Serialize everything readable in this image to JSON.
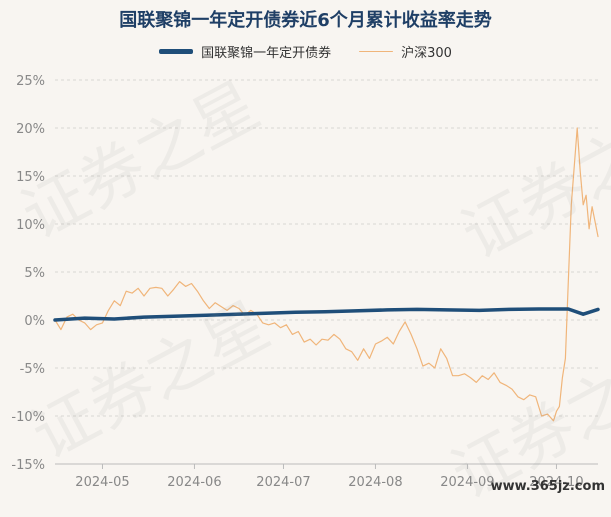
{
  "title": "国联聚锦一年定开债券近6个月累计收益率走势",
  "watermark_text": "证券之星",
  "watermark_url": "www.365jz.com",
  "colors": {
    "fund": "#1f4e79",
    "index": "#f0b57a",
    "grid": "#d9d6d2",
    "axis_text": "#888888"
  },
  "chart_data": {
    "type": "line",
    "title": "国联聚锦一年定开债券近6个月累计收益率走势",
    "legend_position": "top",
    "grid": true,
    "ylim": [
      -15,
      25
    ],
    "y_ticks": [
      "25%",
      "20%",
      "15%",
      "10%",
      "5%",
      "0%",
      "-5%",
      "-10%",
      "-15%"
    ],
    "y_tick_values": [
      25,
      20,
      15,
      10,
      5,
      0,
      -5,
      -10,
      -15
    ],
    "xlim": [
      "2024-04-15",
      "2024-10-15"
    ],
    "x_ticks": [
      "2024-05",
      "2024-06",
      "2024-07",
      "2024-08",
      "2024-09",
      "2024-10"
    ],
    "x_tick_dates": [
      "2024-05-01",
      "2024-06-01",
      "2024-07-01",
      "2024-08-01",
      "2024-09-01",
      "2024-10-01"
    ],
    "series": [
      {
        "name": "国联聚锦一年定开债券",
        "color": "#1f4e79",
        "width": 3.5,
        "points": [
          [
            "2024-04-15",
            0.0
          ],
          [
            "2024-04-25",
            0.2
          ],
          [
            "2024-05-05",
            0.1
          ],
          [
            "2024-05-15",
            0.3
          ],
          [
            "2024-05-25",
            0.4
          ],
          [
            "2024-06-05",
            0.5
          ],
          [
            "2024-06-15",
            0.6
          ],
          [
            "2024-06-25",
            0.7
          ],
          [
            "2024-07-05",
            0.8
          ],
          [
            "2024-07-15",
            0.85
          ],
          [
            "2024-07-25",
            0.95
          ],
          [
            "2024-08-05",
            1.05
          ],
          [
            "2024-08-15",
            1.1
          ],
          [
            "2024-08-25",
            1.05
          ],
          [
            "2024-09-05",
            1.0
          ],
          [
            "2024-09-15",
            1.1
          ],
          [
            "2024-09-25",
            1.15
          ],
          [
            "2024-10-05",
            1.15
          ],
          [
            "2024-10-10",
            0.6
          ],
          [
            "2024-10-15",
            1.1
          ]
        ]
      },
      {
        "name": "沪深300",
        "color": "#f0b57a",
        "width": 1.2,
        "points": [
          [
            "2024-04-15",
            0.0
          ],
          [
            "2024-04-17",
            -1.0
          ],
          [
            "2024-04-19",
            0.3
          ],
          [
            "2024-04-21",
            0.6
          ],
          [
            "2024-04-23",
            0.0
          ],
          [
            "2024-04-25",
            -0.3
          ],
          [
            "2024-04-27",
            -1.0
          ],
          [
            "2024-04-29",
            -0.5
          ],
          [
            "2024-05-01",
            -0.3
          ],
          [
            "2024-05-03",
            1.0
          ],
          [
            "2024-05-05",
            2.0
          ],
          [
            "2024-05-07",
            1.5
          ],
          [
            "2024-05-09",
            3.0
          ],
          [
            "2024-05-11",
            2.8
          ],
          [
            "2024-05-13",
            3.3
          ],
          [
            "2024-05-15",
            2.5
          ],
          [
            "2024-05-17",
            3.3
          ],
          [
            "2024-05-19",
            3.4
          ],
          [
            "2024-05-21",
            3.3
          ],
          [
            "2024-05-23",
            2.5
          ],
          [
            "2024-05-25",
            3.2
          ],
          [
            "2024-05-27",
            4.0
          ],
          [
            "2024-05-29",
            3.5
          ],
          [
            "2024-05-31",
            3.8
          ],
          [
            "2024-06-02",
            3.0
          ],
          [
            "2024-06-04",
            2.0
          ],
          [
            "2024-06-06",
            1.2
          ],
          [
            "2024-06-08",
            1.8
          ],
          [
            "2024-06-10",
            1.4
          ],
          [
            "2024-06-12",
            1.0
          ],
          [
            "2024-06-14",
            1.5
          ],
          [
            "2024-06-16",
            1.2
          ],
          [
            "2024-06-18",
            0.5
          ],
          [
            "2024-06-20",
            1.0
          ],
          [
            "2024-06-22",
            0.6
          ],
          [
            "2024-06-24",
            -0.3
          ],
          [
            "2024-06-26",
            -0.5
          ],
          [
            "2024-06-28",
            -0.3
          ],
          [
            "2024-06-30",
            -0.8
          ],
          [
            "2024-07-02",
            -0.5
          ],
          [
            "2024-07-04",
            -1.5
          ],
          [
            "2024-07-06",
            -1.2
          ],
          [
            "2024-07-08",
            -2.3
          ],
          [
            "2024-07-10",
            -2.0
          ],
          [
            "2024-07-12",
            -2.6
          ],
          [
            "2024-07-14",
            -2.0
          ],
          [
            "2024-07-16",
            -2.1
          ],
          [
            "2024-07-18",
            -1.5
          ],
          [
            "2024-07-20",
            -2.0
          ],
          [
            "2024-07-22",
            -3.0
          ],
          [
            "2024-07-24",
            -3.3
          ],
          [
            "2024-07-26",
            -4.2
          ],
          [
            "2024-07-28",
            -3.0
          ],
          [
            "2024-07-30",
            -4.0
          ],
          [
            "2024-08-01",
            -2.5
          ],
          [
            "2024-08-03",
            -2.2
          ],
          [
            "2024-08-05",
            -1.8
          ],
          [
            "2024-08-07",
            -2.5
          ],
          [
            "2024-08-09",
            -1.2
          ],
          [
            "2024-08-11",
            -0.2
          ],
          [
            "2024-08-13",
            -1.5
          ],
          [
            "2024-08-15",
            -3.0
          ],
          [
            "2024-08-17",
            -4.8
          ],
          [
            "2024-08-19",
            -4.5
          ],
          [
            "2024-08-21",
            -5.0
          ],
          [
            "2024-08-23",
            -3.0
          ],
          [
            "2024-08-25",
            -4.0
          ],
          [
            "2024-08-27",
            -5.8
          ],
          [
            "2024-08-29",
            -5.8
          ],
          [
            "2024-08-31",
            -5.6
          ],
          [
            "2024-09-02",
            -6.0
          ],
          [
            "2024-09-04",
            -6.5
          ],
          [
            "2024-09-06",
            -5.8
          ],
          [
            "2024-09-08",
            -6.2
          ],
          [
            "2024-09-10",
            -5.5
          ],
          [
            "2024-09-12",
            -6.5
          ],
          [
            "2024-09-14",
            -6.8
          ],
          [
            "2024-09-16",
            -7.2
          ],
          [
            "2024-09-18",
            -8.0
          ],
          [
            "2024-09-20",
            -8.3
          ],
          [
            "2024-09-22",
            -7.8
          ],
          [
            "2024-09-24",
            -8.0
          ],
          [
            "2024-09-26",
            -10.0
          ],
          [
            "2024-09-28",
            -9.8
          ],
          [
            "2024-09-30",
            -10.5
          ],
          [
            "2024-10-01",
            -9.5
          ],
          [
            "2024-10-02",
            -9.0
          ],
          [
            "2024-10-03",
            -6.0
          ],
          [
            "2024-10-04",
            -4.0
          ],
          [
            "2024-10-05",
            4.0
          ],
          [
            "2024-10-06",
            12.0
          ],
          [
            "2024-10-08",
            20.0
          ],
          [
            "2024-10-09",
            15.5
          ],
          [
            "2024-10-10",
            12.0
          ],
          [
            "2024-10-11",
            13.0
          ],
          [
            "2024-10-12",
            9.5
          ],
          [
            "2024-10-13",
            11.8
          ],
          [
            "2024-10-15",
            8.7
          ]
        ]
      }
    ]
  }
}
